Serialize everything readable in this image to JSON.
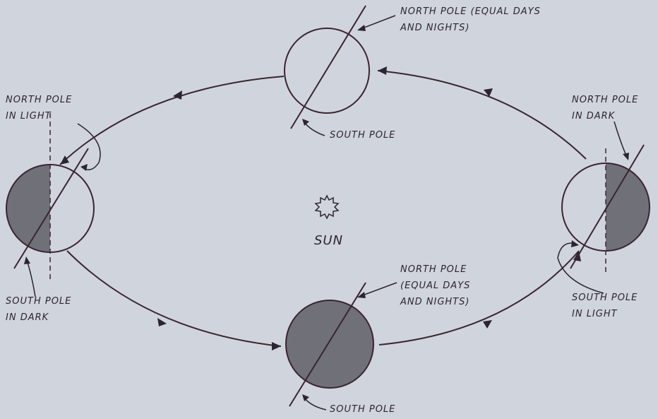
{
  "sun": "SUN",
  "labels": [
    {
      "lines": [
        "NORTH POLE (EQUAL DAYS",
        "AND NIGHTS)"
      ]
    },
    {
      "lines": [
        "SOUTH POLE"
      ]
    },
    {
      "lines": [
        "NORTH POLE",
        "IN LIGHT"
      ]
    },
    {
      "lines": [
        "SOUTH POLE",
        "IN DARK"
      ]
    },
    {
      "lines": [
        "NORTH POLE",
        "IN DARK"
      ]
    },
    {
      "lines": [
        "SOUTH POLE",
        "IN LIGHT"
      ]
    },
    {
      "lines": [
        "NORTH POLE",
        "(EQUAL DAYS",
        "AND NIGHTS)"
      ]
    },
    {
      "lines": [
        "SOUTH POLE"
      ]
    }
  ]
}
